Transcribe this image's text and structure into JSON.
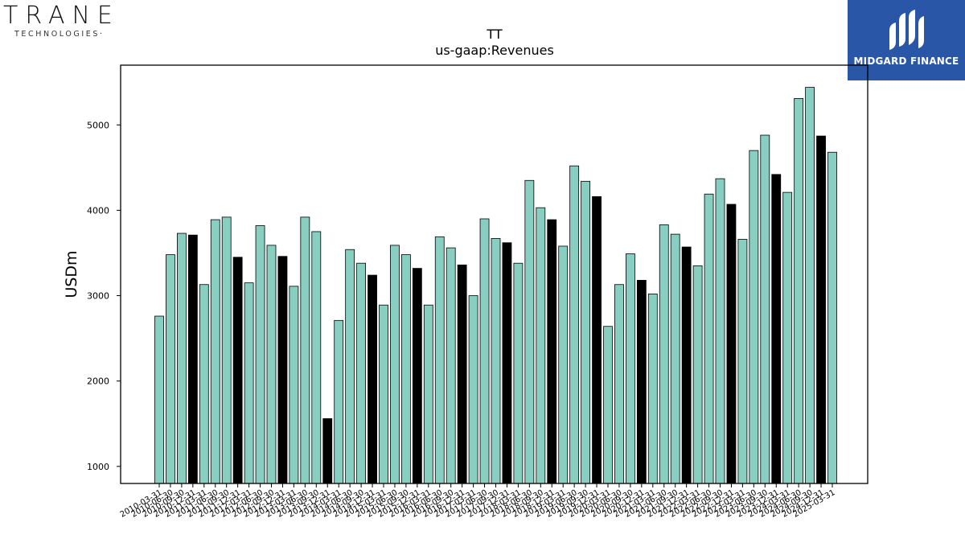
{
  "logos": {
    "left": {
      "word": "TRANE",
      "sub": "TECHNOLOGIES·",
      "accent": "#7a3fd9"
    },
    "right": {
      "name": "MIDGARD FINANCE",
      "bg": "#2a56a8"
    }
  },
  "chart_data": {
    "type": "bar",
    "title": "TT",
    "subtitle": "us-gaap:Revenues",
    "ylabel": "USDm",
    "xlabel": "",
    "ylim": [
      800,
      5700
    ],
    "yticks": [
      1000,
      2000,
      3000,
      4000,
      5000
    ],
    "grid": false,
    "colors": {
      "quarter": "#88cfc1",
      "annual": "#000000"
    },
    "categories": [
      "2010-03-31",
      "2010-06-30",
      "2010-09-30",
      "2010-12-31",
      "2011-03-31",
      "2011-06-30",
      "2011-09-30",
      "2011-12-31",
      "2012-03-31",
      "2012-06-30",
      "2012-09-30",
      "2012-12-31",
      "2013-03-31",
      "2013-06-30",
      "2013-09-30",
      "2013-12-31",
      "2014-03-31",
      "2014-06-30",
      "2014-09-30",
      "2014-12-31",
      "2015-03-31",
      "2015-06-30",
      "2015-09-30",
      "2015-12-31",
      "2016-03-31",
      "2016-06-30",
      "2016-09-30",
      "2016-12-31",
      "2017-03-31",
      "2017-06-30",
      "2017-09-30",
      "2017-12-31",
      "2018-03-31",
      "2018-06-30",
      "2018-09-30",
      "2018-12-31",
      "2019-03-31",
      "2019-06-30",
      "2019-09-30",
      "2019-12-31",
      "2020-03-31",
      "2020-06-30",
      "2020-09-30",
      "2020-12-31",
      "2021-03-31",
      "2021-06-30",
      "2021-09-30",
      "2021-12-31",
      "2022-03-31",
      "2022-06-30",
      "2022-09-30",
      "2022-12-31",
      "2023-03-31",
      "2023-06-30",
      "2023-09-30",
      "2023-12-31",
      "2024-03-31",
      "2024-06-30",
      "2024-09-30",
      "2024-12-31",
      "2025-03-31"
    ],
    "values": [
      2760,
      3480,
      3730,
      3710,
      3130,
      3890,
      3920,
      3450,
      3150,
      3820,
      3590,
      3460,
      3110,
      3920,
      3750,
      1560,
      2710,
      3540,
      3380,
      3240,
      2890,
      3590,
      3480,
      3320,
      2890,
      3690,
      3560,
      3360,
      3000,
      3900,
      3670,
      3620,
      3380,
      4350,
      4030,
      3890,
      3580,
      4520,
      4340,
      4160,
      2640,
      3130,
      3490,
      3180,
      3020,
      3830,
      3720,
      3570,
      3350,
      4190,
      4370,
      4070,
      3660,
      4700,
      4880,
      4420,
      4210,
      5310,
      5440,
      4870,
      4680
    ],
    "annual": [
      3,
      7,
      11,
      15,
      19,
      23,
      27,
      31,
      35,
      39,
      43,
      47,
      51,
      55,
      59
    ],
    "xtick_labels": [
      "2010-03-31",
      "2010-06-30",
      "2010-09-30",
      "2010-12-31",
      "2011-03-31",
      "2011-06-30",
      "2011-09-30",
      "2011-12-31",
      "2012-03-31",
      "2012-06-30",
      "2012-09-30",
      "2012-12-31",
      "2013-03-31",
      "2013-06-30",
      "2013-09-30",
      "2013-12-31",
      "2014-03-31",
      "2014-06-30",
      "2014-09-30",
      "2014-12-31",
      "2015-03-31",
      "2015-06-30",
      "2015-09-30",
      "2015-12-31",
      "2016-03-31",
      "2016-06-30",
      "2016-09-30",
      "2016-12-31",
      "2017-03-31",
      "2017-06-30",
      "2017-09-30",
      "2017-12-31",
      "2018-03-31",
      "2018-06-30",
      "2018-09-30",
      "2018-12-31",
      "2019-03-31",
      "2019-06-30",
      "2019-09-30",
      "2019-12-31",
      "2020-03-31",
      "2020-06-30",
      "2020-09-30",
      "2020-12-31",
      "2021-03-31",
      "2021-06-30",
      "2021-09-30",
      "2021-12-31",
      "2022-03-31",
      "2022-06-30",
      "2022-09-30",
      "2022-12-31",
      "2023-03-31",
      "2023-06-30",
      "2023-09-30",
      "2023-12-31",
      "2024-03-31",
      "2024-06-30",
      "2024-09-30",
      "2024-12-31",
      "2025-03-31"
    ]
  }
}
